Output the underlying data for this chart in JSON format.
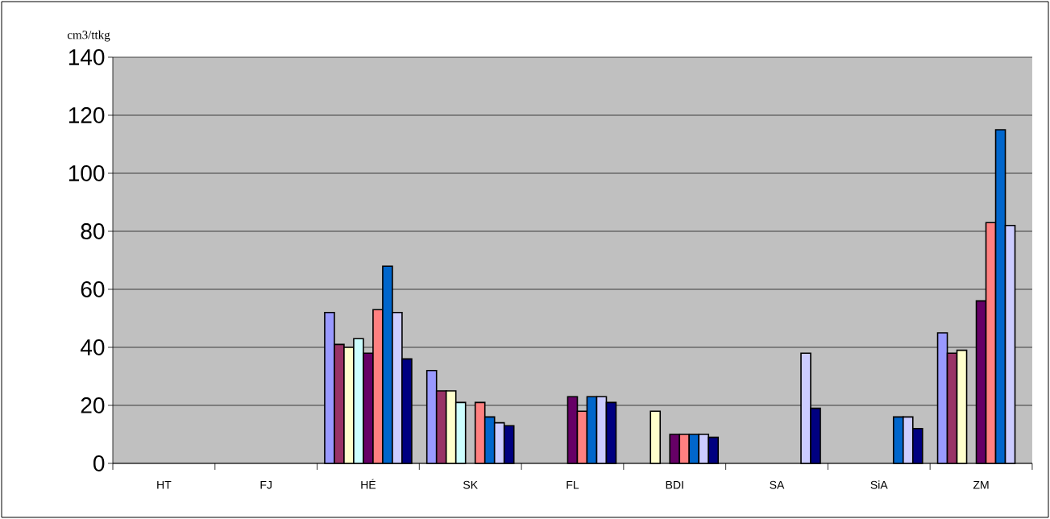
{
  "chart_data": {
    "type": "bar",
    "ylabel": "cm3/ttkg",
    "categories": [
      "HT",
      "FJ",
      "HÉ",
      "SK",
      "FL",
      "BDI",
      "SA",
      "SiA",
      "ZM"
    ],
    "series": [
      {
        "color": "#9999ff",
        "values": [
          null,
          null,
          52,
          32,
          null,
          null,
          null,
          null,
          45
        ]
      },
      {
        "color": "#993366",
        "values": [
          null,
          null,
          41,
          25,
          null,
          null,
          null,
          null,
          38
        ]
      },
      {
        "color": "#ffffcc",
        "values": [
          null,
          null,
          40,
          25,
          null,
          18,
          null,
          null,
          39
        ]
      },
      {
        "color": "#ccffff",
        "values": [
          null,
          null,
          43,
          21,
          null,
          null,
          null,
          null,
          null
        ]
      },
      {
        "color": "#660066",
        "values": [
          null,
          null,
          38,
          null,
          23,
          10,
          null,
          null,
          56
        ]
      },
      {
        "color": "#ff8080",
        "values": [
          null,
          null,
          53,
          21,
          18,
          10,
          null,
          null,
          83
        ]
      },
      {
        "color": "#0066cc",
        "values": [
          null,
          null,
          68,
          16,
          23,
          10,
          null,
          16,
          115
        ]
      },
      {
        "color": "#ccccff",
        "values": [
          null,
          null,
          52,
          14,
          23,
          10,
          38,
          16,
          82
        ]
      },
      {
        "color": "#000080",
        "values": [
          null,
          null,
          36,
          13,
          21,
          9,
          19,
          12,
          null
        ]
      }
    ],
    "ylim": [
      0,
      140
    ],
    "yticks": [
      0,
      20,
      40,
      60,
      80,
      100,
      120,
      140
    ],
    "grid": "y"
  }
}
